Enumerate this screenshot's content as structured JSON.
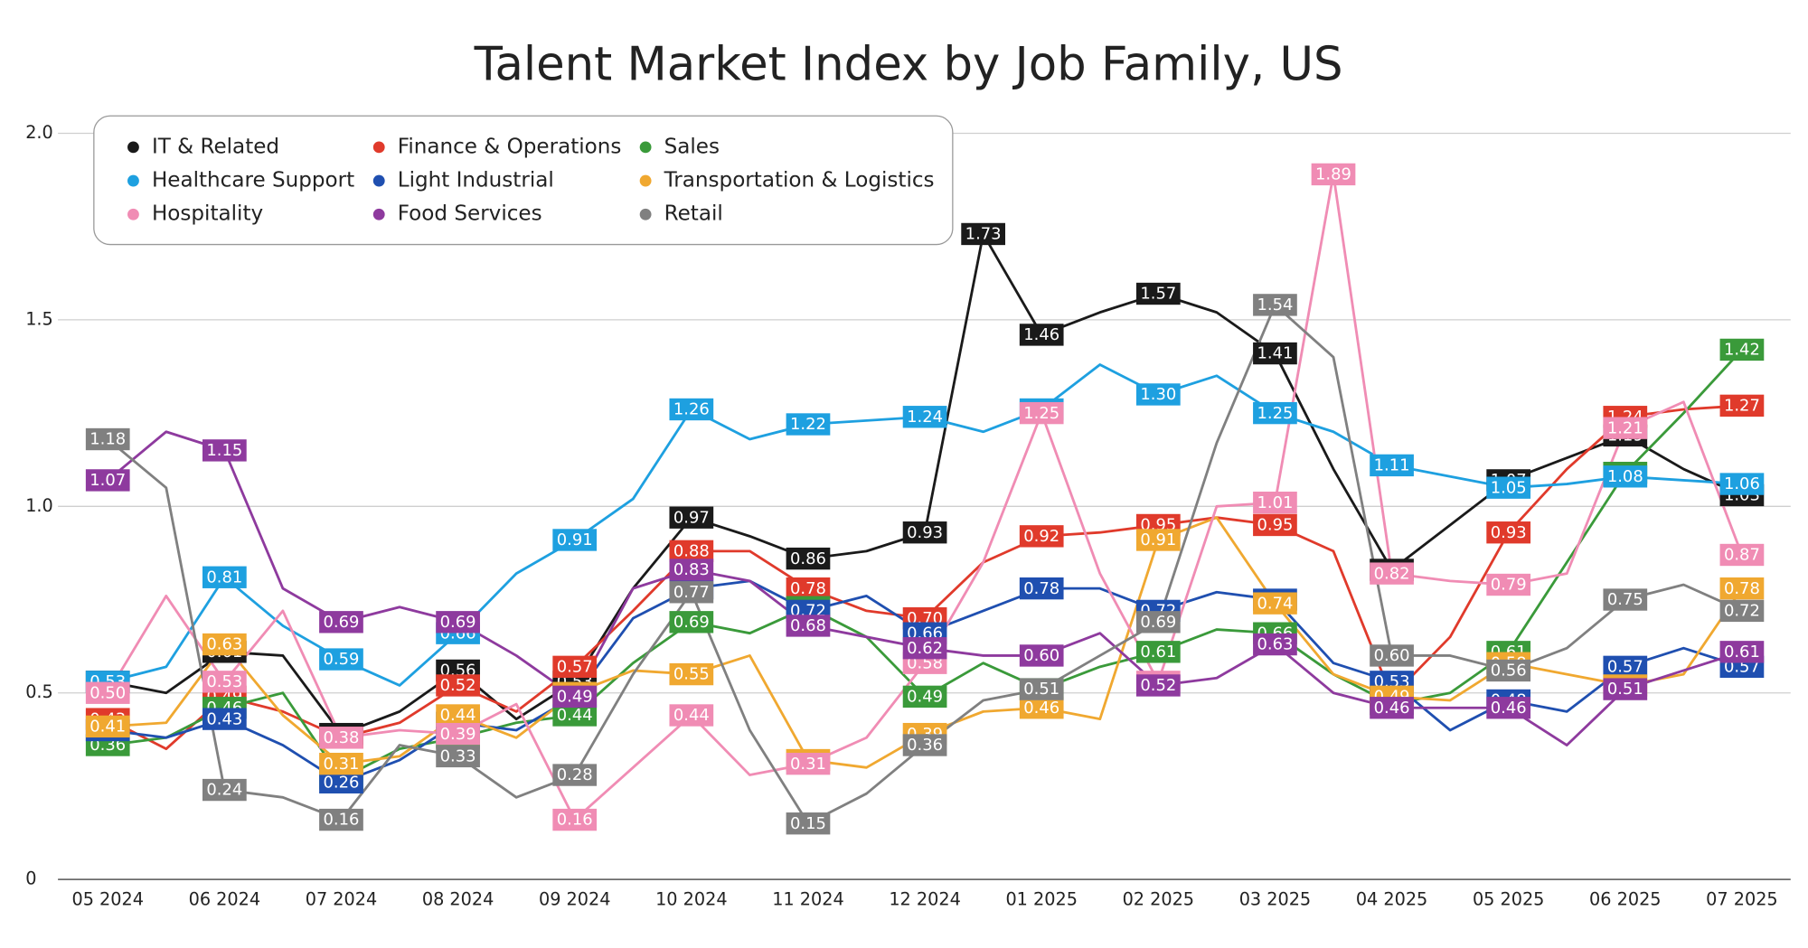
{
  "chart_data": {
    "type": "line",
    "title": "Talent Market Index by Job Family, US",
    "categories": [
      "05 2024",
      null,
      "06 2024",
      null,
      "07 2024",
      null,
      "08 2024",
      null,
      "09 2024",
      null,
      "10 2024",
      null,
      "11 2024",
      null,
      "12 2024",
      null,
      "01 2025",
      null,
      "02 2025",
      null,
      "03 2025",
      null,
      "04 2025",
      null,
      "05 2025",
      null,
      "06 2025",
      null,
      "07 2025"
    ],
    "ylim": [
      0,
      2
    ],
    "yticks": [
      0,
      0.5,
      {
        "value": 1,
        "label": "1.0"
      },
      1.5,
      {
        "value": 2,
        "label": "2.0"
      }
    ],
    "grid": true,
    "legend": "top-left",
    "series": [
      {
        "name": "IT & Related",
        "color": "#1a1a1a",
        "values": [
          0.53,
          0.5,
          0.61,
          0.6,
          0.39,
          0.45,
          0.56,
          0.43,
          0.53,
          0.78,
          0.97,
          0.92,
          0.86,
          0.88,
          0.93,
          1.73,
          1.46,
          1.52,
          1.57,
          1.52,
          1.41,
          1.1,
          0.83,
          0.95,
          1.07,
          1.13,
          1.19,
          1.1,
          1.03
        ],
        "value_labels": [
          "0.53",
          null,
          "0.61",
          null,
          "0.39",
          null,
          "0.56",
          null,
          "0.53",
          null,
          "0.97",
          null,
          "0.86",
          null,
          "0.93",
          "1.73",
          "1.46",
          null,
          "1.57",
          null,
          "1.41",
          null,
          "0.83",
          null,
          "1.07",
          null,
          "1.19",
          null,
          "1.03"
        ]
      },
      {
        "name": "Finance & Operations",
        "color": "#e03a2b",
        "values": [
          0.43,
          0.35,
          0.49,
          0.45,
          0.38,
          0.42,
          0.52,
          0.45,
          0.57,
          0.72,
          0.88,
          0.88,
          0.78,
          0.72,
          0.7,
          0.85,
          0.92,
          0.93,
          0.95,
          0.97,
          0.95,
          0.88,
          0.49,
          0.65,
          0.93,
          1.1,
          1.24,
          1.26,
          1.27
        ],
        "value_labels": [
          "0.43",
          null,
          "0.49",
          null,
          "0.38",
          null,
          "0.52",
          null,
          "0.57",
          null,
          "0.88",
          null,
          "0.78",
          null,
          "0.70",
          null,
          "0.92",
          null,
          "0.95",
          null,
          "0.95",
          null,
          "0.49",
          null,
          "0.93",
          null,
          "1.24",
          null,
          "1.27"
        ]
      },
      {
        "name": "Sales",
        "color": "#3a9a3a",
        "values": [
          0.36,
          0.38,
          0.46,
          0.5,
          0.27,
          0.35,
          0.38,
          0.42,
          0.44,
          0.58,
          0.69,
          0.66,
          0.73,
          0.65,
          0.49,
          0.58,
          0.51,
          0.57,
          0.61,
          0.67,
          0.66,
          0.55,
          0.47,
          0.5,
          0.61,
          0.85,
          1.09,
          1.25,
          1.42
        ],
        "value_labels": [
          "0.36",
          null,
          "0.46",
          null,
          "0.27",
          null,
          "0.38",
          null,
          "0.44",
          null,
          "0.69",
          null,
          "0.73",
          null,
          "0.49",
          null,
          "0.51",
          null,
          "0.61",
          null,
          "0.66",
          null,
          "0.47",
          null,
          "0.61",
          null,
          "1.09",
          null,
          "1.42"
        ]
      },
      {
        "name": "Healthcare Support",
        "color": "#1ea0e0",
        "values": [
          0.53,
          0.57,
          0.81,
          0.68,
          0.59,
          0.52,
          0.66,
          0.82,
          0.91,
          1.02,
          1.26,
          1.18,
          1.22,
          1.23,
          1.24,
          1.2,
          1.26,
          1.38,
          1.3,
          1.35,
          1.25,
          1.2,
          1.11,
          1.08,
          1.05,
          1.06,
          1.08,
          1.07,
          1.06
        ],
        "value_labels": [
          "0.53",
          null,
          "0.81",
          null,
          "0.59",
          null,
          "0.66",
          null,
          "0.91",
          null,
          "1.26",
          null,
          "1.22",
          null,
          "1.24",
          null,
          "1.26",
          null,
          "1.30",
          null,
          "1.25",
          null,
          "1.11",
          null,
          "1.05",
          null,
          "1.08",
          null,
          "1.06"
        ]
      },
      {
        "name": "Light Industrial",
        "color": "#1f4fb0",
        "values": [
          0.4,
          0.38,
          0.43,
          0.36,
          0.26,
          0.32,
          0.42,
          0.4,
          0.49,
          0.7,
          0.78,
          0.8,
          0.72,
          0.76,
          0.66,
          0.72,
          0.78,
          0.78,
          0.72,
          0.77,
          0.75,
          0.58,
          0.53,
          0.4,
          0.48,
          0.45,
          0.57,
          0.62,
          0.57
        ],
        "value_labels": [
          "0.40",
          null,
          "0.43",
          null,
          "0.26",
          null,
          "0.42",
          null,
          "0.49",
          null,
          "0.78",
          null,
          "0.72",
          null,
          "0.66",
          null,
          "0.78",
          null,
          "0.72",
          null,
          "0.75",
          null,
          "0.53",
          null,
          "0.48",
          null,
          "0.57",
          null,
          "0.57"
        ]
      },
      {
        "name": "Transportation & Logistics",
        "color": "#f0a830",
        "values": [
          0.41,
          0.42,
          0.63,
          0.44,
          0.31,
          0.33,
          0.44,
          0.38,
          0.5,
          0.56,
          0.55,
          0.6,
          0.32,
          0.3,
          0.39,
          0.45,
          0.46,
          0.43,
          0.91,
          0.97,
          0.74,
          0.55,
          0.49,
          0.48,
          0.58,
          0.55,
          0.52,
          0.55,
          0.78
        ],
        "value_labels": [
          "0.41",
          null,
          "0.63",
          null,
          "0.31",
          null,
          "0.44",
          null,
          "0.50",
          null,
          "0.55",
          null,
          "0.32",
          null,
          "0.39",
          null,
          "0.46",
          null,
          "0.91",
          null,
          "0.74",
          null,
          "0.49",
          null,
          "0.58",
          null,
          "0.52",
          null,
          "0.78"
        ]
      },
      {
        "name": "Hospitality",
        "color": "#f08cb4",
        "values": [
          0.5,
          0.76,
          0.53,
          0.72,
          0.38,
          0.4,
          0.39,
          0.47,
          0.16,
          0.3,
          0.44,
          0.28,
          0.31,
          0.38,
          0.58,
          0.85,
          1.25,
          0.82,
          0.53,
          1.0,
          1.01,
          1.89,
          0.82,
          0.8,
          0.79,
          0.82,
          1.21,
          1.28,
          0.87
        ],
        "value_labels": [
          "0.50",
          null,
          "0.53",
          null,
          "0.38",
          null,
          "0.39",
          null,
          "0.16",
          null,
          "0.44",
          null,
          "0.31",
          null,
          "0.58",
          null,
          "1.25",
          null,
          "0.53",
          null,
          "1.01",
          "1.89",
          "0.82",
          null,
          "0.79",
          null,
          "1.21",
          null,
          "0.87"
        ]
      },
      {
        "name": "Food Services",
        "color": "#8e3a9e",
        "values": [
          1.07,
          1.2,
          1.15,
          0.78,
          0.69,
          0.73,
          0.69,
          0.6,
          0.49,
          0.78,
          0.83,
          0.8,
          0.68,
          0.65,
          0.62,
          0.6,
          0.6,
          0.66,
          0.52,
          0.54,
          0.63,
          0.5,
          0.46,
          0.46,
          0.46,
          0.36,
          0.51,
          0.56,
          0.61
        ],
        "value_labels": [
          "1.07",
          null,
          "1.15",
          null,
          "0.69",
          null,
          "0.69",
          null,
          "0.49",
          null,
          "0.83",
          null,
          "0.68",
          null,
          "0.62",
          null,
          "0.60",
          null,
          "0.52",
          null,
          "0.63",
          null,
          "0.46",
          null,
          "0.46",
          null,
          "0.51",
          null,
          "0.61"
        ]
      },
      {
        "name": "Retail",
        "color": "#808080",
        "values": [
          1.18,
          1.05,
          0.24,
          0.22,
          0.16,
          0.36,
          0.33,
          0.22,
          0.28,
          0.55,
          0.77,
          0.4,
          0.15,
          0.23,
          0.36,
          0.48,
          0.51,
          0.6,
          0.69,
          1.17,
          1.54,
          1.4,
          0.6,
          0.6,
          0.56,
          0.62,
          0.75,
          0.79,
          0.72
        ],
        "value_labels": [
          "1.18",
          null,
          "0.24",
          null,
          "0.16",
          null,
          "0.33",
          null,
          "0.28",
          null,
          "0.77",
          null,
          "0.15",
          null,
          "0.36",
          null,
          "0.51",
          null,
          "0.69",
          null,
          "1.54",
          null,
          "0.60",
          null,
          "0.56",
          null,
          "0.75",
          null,
          "0.72"
        ]
      }
    ]
  }
}
